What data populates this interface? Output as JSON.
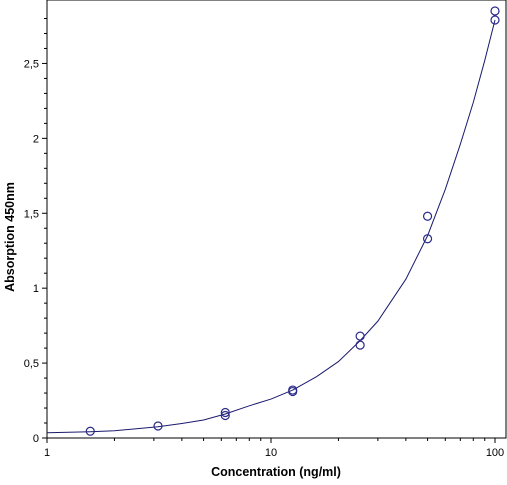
{
  "chart_data": {
    "type": "scatter",
    "title": "",
    "xlabel": "Concentration (ng/ml)",
    "ylabel": "Absorption 450nm",
    "x_scale": "log",
    "xlim": [
      1,
      100
    ],
    "ylim": [
      0,
      2.85
    ],
    "x_ticks": [
      {
        "value": 1,
        "label": "1"
      },
      {
        "value": 10,
        "label": "10"
      },
      {
        "value": 100,
        "label": "100"
      }
    ],
    "y_ticks": [
      {
        "value": 0,
        "label": "0"
      },
      {
        "value": 0.5,
        "label": "0,5"
      },
      {
        "value": 1,
        "label": "1"
      },
      {
        "value": 1.5,
        "label": "1,5"
      },
      {
        "value": 2,
        "label": "2"
      },
      {
        "value": 2.5,
        "label": "2,5"
      }
    ],
    "series": [
      {
        "marker": "open-circle",
        "color": "#2a2a8a",
        "points": [
          {
            "x": 1.56,
            "y": 0.045
          },
          {
            "x": 3.13,
            "y": 0.08
          },
          {
            "x": 6.25,
            "y": 0.15
          },
          {
            "x": 6.25,
            "y": 0.17
          },
          {
            "x": 12.5,
            "y": 0.31
          },
          {
            "x": 12.5,
            "y": 0.32
          },
          {
            "x": 25,
            "y": 0.62
          },
          {
            "x": 25,
            "y": 0.68
          },
          {
            "x": 50,
            "y": 1.33
          },
          {
            "x": 50,
            "y": 1.48
          },
          {
            "x": 100,
            "y": 2.79
          },
          {
            "x": 100,
            "y": 2.85
          }
        ]
      },
      {
        "kind": "fit-curve",
        "color": "#1a1a6e",
        "points": [
          {
            "x": 1,
            "y": 0.035
          },
          {
            "x": 1.56,
            "y": 0.042
          },
          {
            "x": 2,
            "y": 0.048
          },
          {
            "x": 3.13,
            "y": 0.075
          },
          {
            "x": 4,
            "y": 0.097
          },
          {
            "x": 5,
            "y": 0.12
          },
          {
            "x": 6.25,
            "y": 0.16
          },
          {
            "x": 8,
            "y": 0.215
          },
          {
            "x": 10,
            "y": 0.26
          },
          {
            "x": 12.5,
            "y": 0.32
          },
          {
            "x": 16,
            "y": 0.41
          },
          {
            "x": 20,
            "y": 0.51
          },
          {
            "x": 25,
            "y": 0.65
          },
          {
            "x": 30,
            "y": 0.78
          },
          {
            "x": 40,
            "y": 1.06
          },
          {
            "x": 50,
            "y": 1.35
          },
          {
            "x": 60,
            "y": 1.66
          },
          {
            "x": 70,
            "y": 1.96
          },
          {
            "x": 80,
            "y": 2.24
          },
          {
            "x": 90,
            "y": 2.52
          },
          {
            "x": 100,
            "y": 2.79
          }
        ]
      }
    ],
    "grid": false,
    "legend": "none"
  }
}
